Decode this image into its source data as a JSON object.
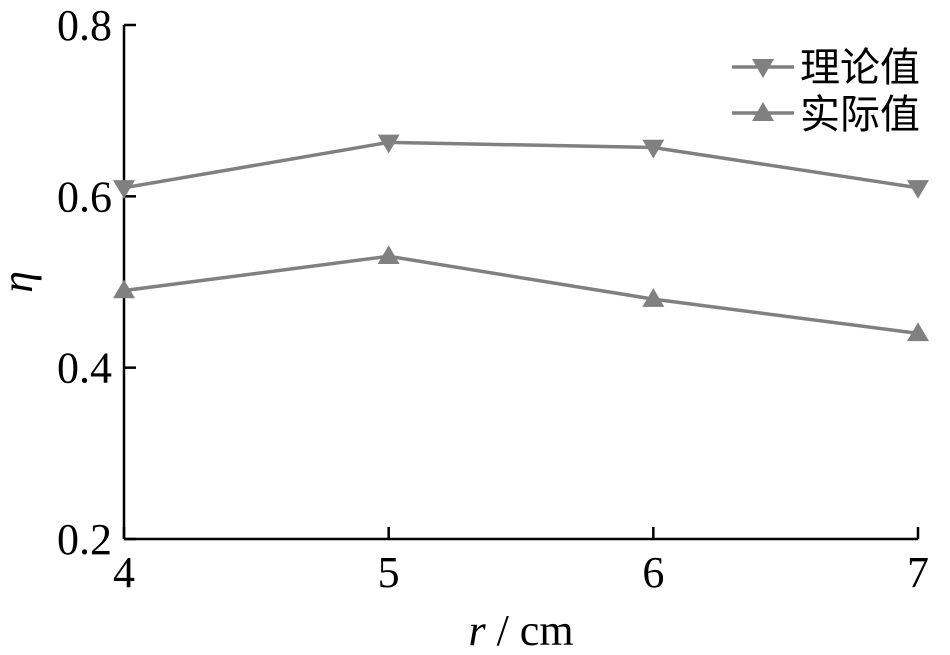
{
  "chart_data": {
    "type": "line",
    "x": [
      4,
      5,
      6,
      7
    ],
    "xlabel_var": "r",
    "xlabel_unit": " / cm",
    "ylabel": "η",
    "xlim": [
      4,
      7
    ],
    "ylim": [
      0.2,
      0.8
    ],
    "xticks": [
      "4",
      "5",
      "6",
      "7"
    ],
    "yticks": [
      "0.2",
      "0.4",
      "0.6",
      "0.8"
    ],
    "ytick_values": [
      0.2,
      0.4,
      0.6,
      0.8
    ],
    "grid": false,
    "legend_position": "top-right",
    "series": [
      {
        "name": "理论值",
        "marker": "triangle-down",
        "color": "#808080",
        "values": [
          0.61,
          0.663,
          0.657,
          0.61
        ]
      },
      {
        "name": "实际值",
        "marker": "triangle-up",
        "color": "#808080",
        "values": [
          0.49,
          0.53,
          0.48,
          0.44
        ]
      }
    ]
  }
}
